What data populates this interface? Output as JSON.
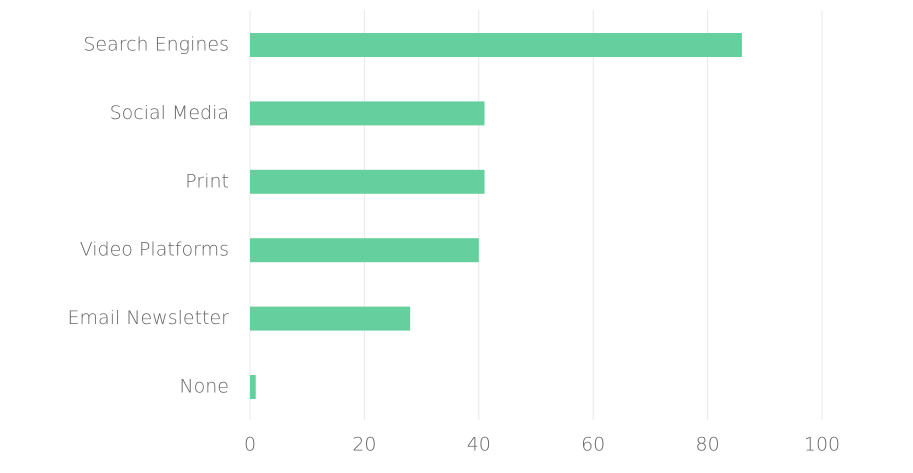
{
  "chart_data": {
    "type": "bar",
    "orientation": "horizontal",
    "categories": [
      "Search Engines",
      "Social Media",
      "Print",
      "Video Platforms",
      "Email Newsletter",
      "None"
    ],
    "values": [
      86,
      41,
      41,
      40,
      28,
      1
    ],
    "color": "#66cf9e",
    "xlim": [
      0,
      100
    ],
    "xticks": [
      0,
      20,
      40,
      60,
      80,
      100
    ],
    "grid": true
  }
}
